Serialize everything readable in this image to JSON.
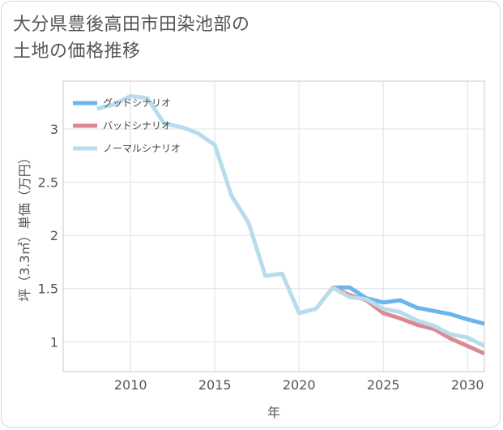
{
  "title": {
    "line1": "大分県豊後高田市田染池部の",
    "line2": "土地の価格推移"
  },
  "chart_data": {
    "type": "line",
    "xlabel": "年",
    "ylabel": "坪（3.3㎡）単価（万円）",
    "xlim": [
      2006,
      2031
    ],
    "ylim": [
      0.72,
      3.45
    ],
    "xticks": [
      2010,
      2015,
      2020,
      2025,
      2030
    ],
    "yticks": [
      1,
      1.5,
      2,
      2.5,
      3
    ],
    "ytick_labels": [
      "1",
      "1.5",
      "2",
      "2.5",
      "3"
    ],
    "grid": true,
    "legend_position": "top-left",
    "series": [
      {
        "name": "グッドシナリオ",
        "color": "#6cb4ec",
        "x": [
          2022,
          2023,
          2024,
          2025,
          2026,
          2027,
          2028,
          2029,
          2030,
          2031
        ],
        "y": [
          1.51,
          1.51,
          1.41,
          1.37,
          1.39,
          1.32,
          1.29,
          1.26,
          1.21,
          1.17
        ]
      },
      {
        "name": "バッドシナリオ",
        "color": "#dc8890",
        "x": [
          2022,
          2023,
          2024,
          2025,
          2026,
          2027,
          2028,
          2029,
          2030,
          2031
        ],
        "y": [
          1.51,
          1.44,
          1.39,
          1.27,
          1.22,
          1.16,
          1.12,
          1.03,
          0.96,
          0.89
        ]
      },
      {
        "name": "ノーマルシナリオ",
        "color": "#b8dcec",
        "x": [
          2008,
          2009,
          2010,
          2011,
          2012,
          2013,
          2014,
          2015,
          2016,
          2017,
          2018,
          2019,
          2020,
          2021,
          2022,
          2023,
          2024,
          2025,
          2026,
          2027,
          2028,
          2029,
          2030,
          2031
        ],
        "y": [
          3.19,
          3.23,
          3.31,
          3.29,
          3.05,
          3.02,
          2.96,
          2.85,
          2.37,
          2.12,
          1.62,
          1.64,
          1.27,
          1.31,
          1.51,
          1.42,
          1.4,
          1.31,
          1.28,
          1.2,
          1.15,
          1.07,
          1.04,
          0.96
        ]
      }
    ]
  }
}
